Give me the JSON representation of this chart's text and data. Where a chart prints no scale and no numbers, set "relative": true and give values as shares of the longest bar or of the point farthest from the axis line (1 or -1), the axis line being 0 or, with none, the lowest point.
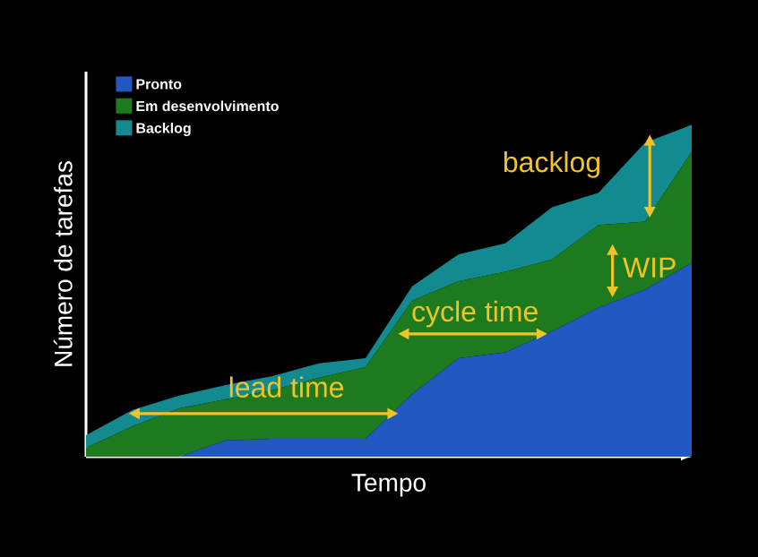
{
  "chart_data": {
    "type": "area",
    "stacked": true,
    "relative": true,
    "legend": "top left",
    "xlabel": "Tempo",
    "ylabel": "Número de tarefas",
    "categories": [
      null,
      null,
      null,
      null,
      null,
      null,
      null,
      null,
      null,
      null,
      null,
      null,
      null,
      null
    ],
    "series": [
      {
        "name": "Pronto",
        "color": "#2058c0",
        "values": [
          0,
          0,
          0,
          0.049,
          0.054,
          0.054,
          0.054,
          0.189,
          0.297,
          0.314,
          0.378,
          0.449,
          0.503,
          0.584
        ]
      },
      {
        "name": "Em desenvolvimento",
        "color": "#1e7a1e",
        "values": [
          0.027,
          0.092,
          0.146,
          0.124,
          0.146,
          0.184,
          0.216,
          0.281,
          0.232,
          0.243,
          0.216,
          0.249,
          0.205,
          0.335
        ]
      },
      {
        "name": "Backlog",
        "color": "#128a90",
        "values": [
          0.038,
          0.049,
          0.038,
          0.043,
          0.043,
          0.043,
          0.027,
          0.043,
          0.081,
          0.086,
          0.157,
          0.097,
          0.238,
          0.081
        ]
      }
    ],
    "annotations": [
      "lead time",
      "cycle time",
      "WIP",
      "backlog"
    ]
  }
}
